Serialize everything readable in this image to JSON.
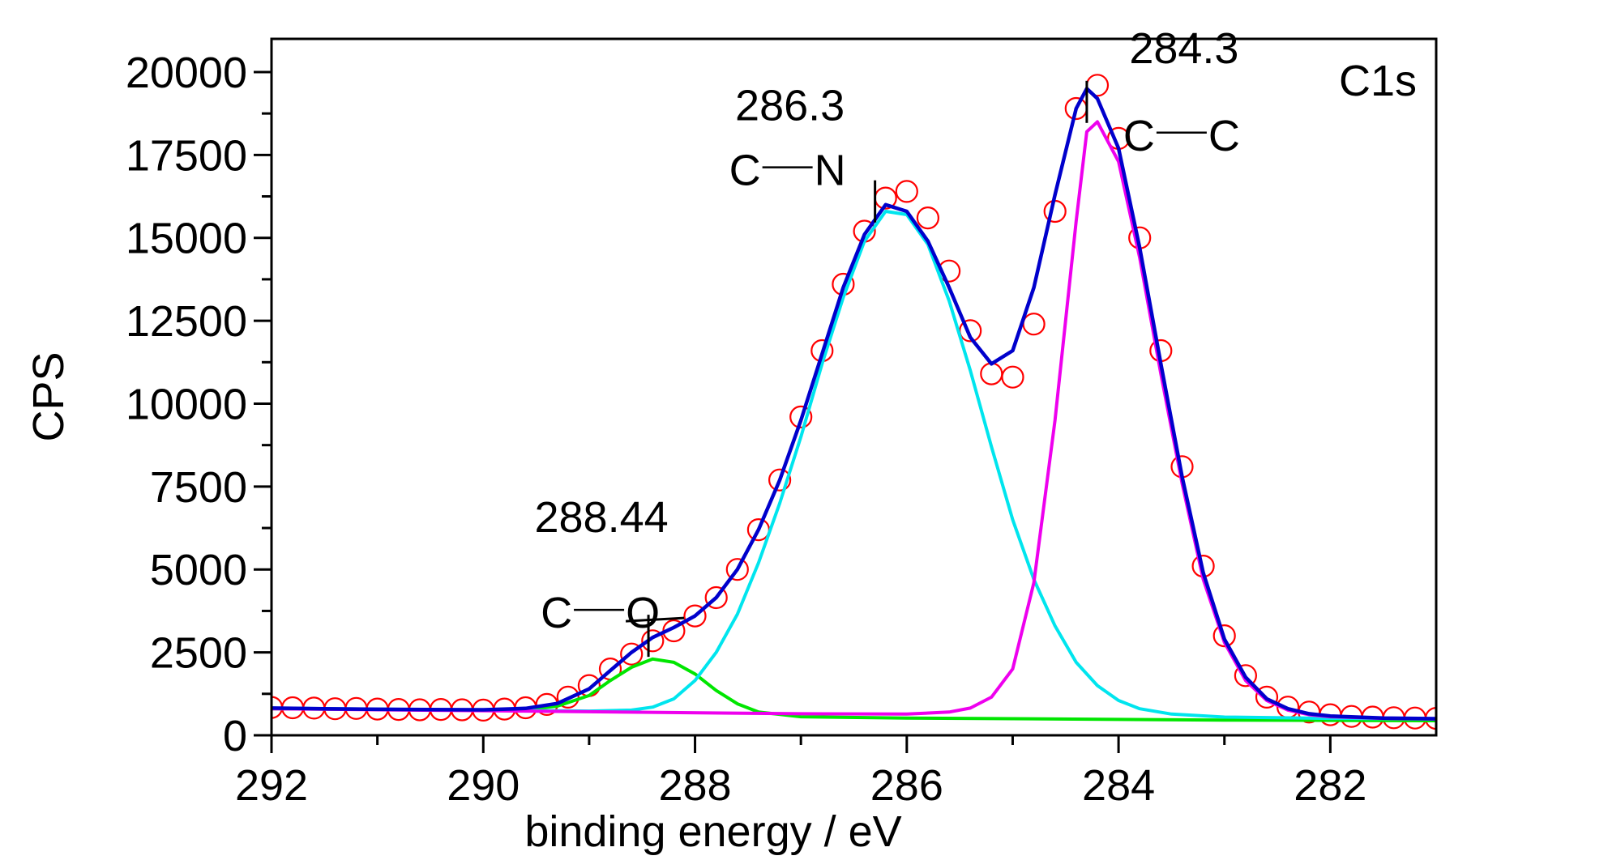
{
  "chart_data": {
    "type": "line",
    "title": "",
    "xlabel": "binding energy / eV",
    "ylabel": "CPS",
    "xlim": [
      292,
      281
    ],
    "ylim": [
      0,
      21000
    ],
    "x_reversed": true,
    "x_ticks": [
      292,
      290,
      288,
      286,
      284,
      282
    ],
    "y_ticks": [
      0,
      2500,
      5000,
      7500,
      10000,
      12500,
      15000,
      17500,
      20000
    ],
    "grid": false,
    "colors": {
      "data": "#ff0000",
      "envelope": "#0000cc",
      "cn": "#00e5ee",
      "cc": "#ee00ee",
      "co": "#00e600",
      "annotation": "#000000"
    },
    "series": [
      {
        "kind": "scatter",
        "marker": "open-circle",
        "points": [
          [
            292.0,
            840
          ],
          [
            291.8,
            830
          ],
          [
            291.6,
            820
          ],
          [
            291.4,
            800
          ],
          [
            291.2,
            810
          ],
          [
            291.0,
            790
          ],
          [
            290.8,
            780
          ],
          [
            290.6,
            770
          ],
          [
            290.4,
            780
          ],
          [
            290.2,
            770
          ],
          [
            290.0,
            760
          ],
          [
            289.8,
            790
          ],
          [
            289.6,
            830
          ],
          [
            289.4,
            930
          ],
          [
            289.2,
            1150
          ],
          [
            289.0,
            1500
          ],
          [
            288.8,
            2000
          ],
          [
            288.6,
            2450
          ],
          [
            288.4,
            2850
          ],
          [
            288.2,
            3150
          ],
          [
            288.0,
            3600
          ],
          [
            287.8,
            4150
          ],
          [
            287.6,
            5000
          ],
          [
            287.4,
            6200
          ],
          [
            287.2,
            7700
          ],
          [
            287.0,
            9600
          ],
          [
            286.8,
            11600
          ],
          [
            286.6,
            13600
          ],
          [
            286.4,
            15200
          ],
          [
            286.2,
            16200
          ],
          [
            286.0,
            16400
          ],
          [
            285.8,
            15600
          ],
          [
            285.6,
            14000
          ],
          [
            285.4,
            12200
          ],
          [
            285.2,
            10900
          ],
          [
            285.0,
            10800
          ],
          [
            284.8,
            12400
          ],
          [
            284.6,
            15800
          ],
          [
            284.4,
            18900
          ],
          [
            284.2,
            19600
          ],
          [
            284.0,
            18000
          ],
          [
            283.8,
            15000
          ],
          [
            283.6,
            11600
          ],
          [
            283.4,
            8100
          ],
          [
            283.2,
            5100
          ],
          [
            283.0,
            3000
          ],
          [
            282.8,
            1800
          ],
          [
            282.6,
            1150
          ],
          [
            282.4,
            850
          ],
          [
            282.2,
            700
          ],
          [
            282.0,
            620
          ],
          [
            281.8,
            570
          ],
          [
            281.6,
            550
          ],
          [
            281.4,
            530
          ],
          [
            281.2,
            520
          ],
          [
            281.0,
            510
          ]
        ]
      },
      {
        "kind": "line",
        "role": "envelope",
        "points": [
          [
            292.0,
            820
          ],
          [
            291.5,
            800
          ],
          [
            291.0,
            785
          ],
          [
            290.5,
            775
          ],
          [
            290.0,
            770
          ],
          [
            289.6,
            810
          ],
          [
            289.3,
            960
          ],
          [
            289.0,
            1400
          ],
          [
            288.8,
            1950
          ],
          [
            288.6,
            2500
          ],
          [
            288.4,
            2950
          ],
          [
            288.2,
            3250
          ],
          [
            288.0,
            3600
          ],
          [
            287.8,
            4150
          ],
          [
            287.6,
            5000
          ],
          [
            287.4,
            6200
          ],
          [
            287.2,
            7700
          ],
          [
            287.0,
            9500
          ],
          [
            286.8,
            11500
          ],
          [
            286.6,
            13500
          ],
          [
            286.4,
            15100
          ],
          [
            286.2,
            16000
          ],
          [
            286.0,
            15800
          ],
          [
            285.8,
            14900
          ],
          [
            285.6,
            13500
          ],
          [
            285.4,
            12000
          ],
          [
            285.2,
            11200
          ],
          [
            285.0,
            11600
          ],
          [
            284.8,
            13500
          ],
          [
            284.6,
            16300
          ],
          [
            284.4,
            18900
          ],
          [
            284.3,
            19500
          ],
          [
            284.2,
            19200
          ],
          [
            284.0,
            17700
          ],
          [
            283.8,
            14700
          ],
          [
            283.6,
            11200
          ],
          [
            283.4,
            7800
          ],
          [
            283.2,
            4900
          ],
          [
            283.0,
            2900
          ],
          [
            282.8,
            1750
          ],
          [
            282.6,
            1100
          ],
          [
            282.4,
            800
          ],
          [
            282.2,
            650
          ],
          [
            282.0,
            580
          ],
          [
            281.5,
            520
          ],
          [
            281.0,
            500
          ]
        ]
      },
      {
        "kind": "line",
        "role": "component-cn",
        "points": [
          [
            292.0,
            820
          ],
          [
            290.0,
            760
          ],
          [
            289.0,
            730
          ],
          [
            288.6,
            760
          ],
          [
            288.4,
            850
          ],
          [
            288.2,
            1100
          ],
          [
            288.0,
            1650
          ],
          [
            287.8,
            2500
          ],
          [
            287.6,
            3650
          ],
          [
            287.4,
            5200
          ],
          [
            287.2,
            7000
          ],
          [
            287.0,
            9000
          ],
          [
            286.8,
            11200
          ],
          [
            286.6,
            13200
          ],
          [
            286.4,
            14900
          ],
          [
            286.2,
            15800
          ],
          [
            286.0,
            15700
          ],
          [
            285.8,
            14800
          ],
          [
            285.6,
            13100
          ],
          [
            285.4,
            11000
          ],
          [
            285.2,
            8700
          ],
          [
            285.0,
            6500
          ],
          [
            284.8,
            4700
          ],
          [
            284.6,
            3300
          ],
          [
            284.4,
            2200
          ],
          [
            284.2,
            1500
          ],
          [
            284.0,
            1050
          ],
          [
            283.8,
            800
          ],
          [
            283.5,
            640
          ],
          [
            283.0,
            550
          ],
          [
            282.0,
            510
          ],
          [
            281.0,
            490
          ]
        ]
      },
      {
        "kind": "line",
        "role": "component-cc",
        "points": [
          [
            292.0,
            800
          ],
          [
            289.0,
            710
          ],
          [
            287.0,
            650
          ],
          [
            286.0,
            640
          ],
          [
            285.6,
            700
          ],
          [
            285.4,
            820
          ],
          [
            285.2,
            1150
          ],
          [
            285.0,
            2000
          ],
          [
            284.8,
            4600
          ],
          [
            284.6,
            9500
          ],
          [
            284.4,
            15500
          ],
          [
            284.3,
            18200
          ],
          [
            284.2,
            18500
          ],
          [
            284.0,
            17300
          ],
          [
            283.8,
            14400
          ],
          [
            283.6,
            10900
          ],
          [
            283.4,
            7600
          ],
          [
            283.2,
            4700
          ],
          [
            283.0,
            2800
          ],
          [
            282.8,
            1650
          ],
          [
            282.6,
            1050
          ],
          [
            282.4,
            760
          ],
          [
            282.2,
            620
          ],
          [
            282.0,
            560
          ],
          [
            281.5,
            510
          ],
          [
            281.0,
            490
          ]
        ]
      },
      {
        "kind": "line",
        "role": "component-co",
        "points": [
          [
            292.0,
            800
          ],
          [
            290.0,
            760
          ],
          [
            289.6,
            780
          ],
          [
            289.3,
            880
          ],
          [
            289.0,
            1200
          ],
          [
            288.8,
            1650
          ],
          [
            288.6,
            2050
          ],
          [
            288.4,
            2300
          ],
          [
            288.2,
            2200
          ],
          [
            288.0,
            1850
          ],
          [
            287.8,
            1350
          ],
          [
            287.6,
            950
          ],
          [
            287.4,
            700
          ],
          [
            287.0,
            560
          ],
          [
            286.0,
            520
          ],
          [
            285.0,
            500
          ],
          [
            283.0,
            460
          ],
          [
            281.0,
            440
          ]
        ]
      }
    ],
    "annotations": [
      {
        "x": 288.44,
        "y": 3000,
        "label": "288.44",
        "bond_left": "C",
        "bond_right": "O"
      },
      {
        "x": 286.3,
        "y": 16100,
        "label": "286.3",
        "bond_left": "C",
        "bond_right": "N"
      },
      {
        "x": 284.3,
        "y": 19100,
        "label": "284.3",
        "bond_left": "C",
        "bond_right": "C"
      }
    ],
    "corner_label": "C1s"
  }
}
